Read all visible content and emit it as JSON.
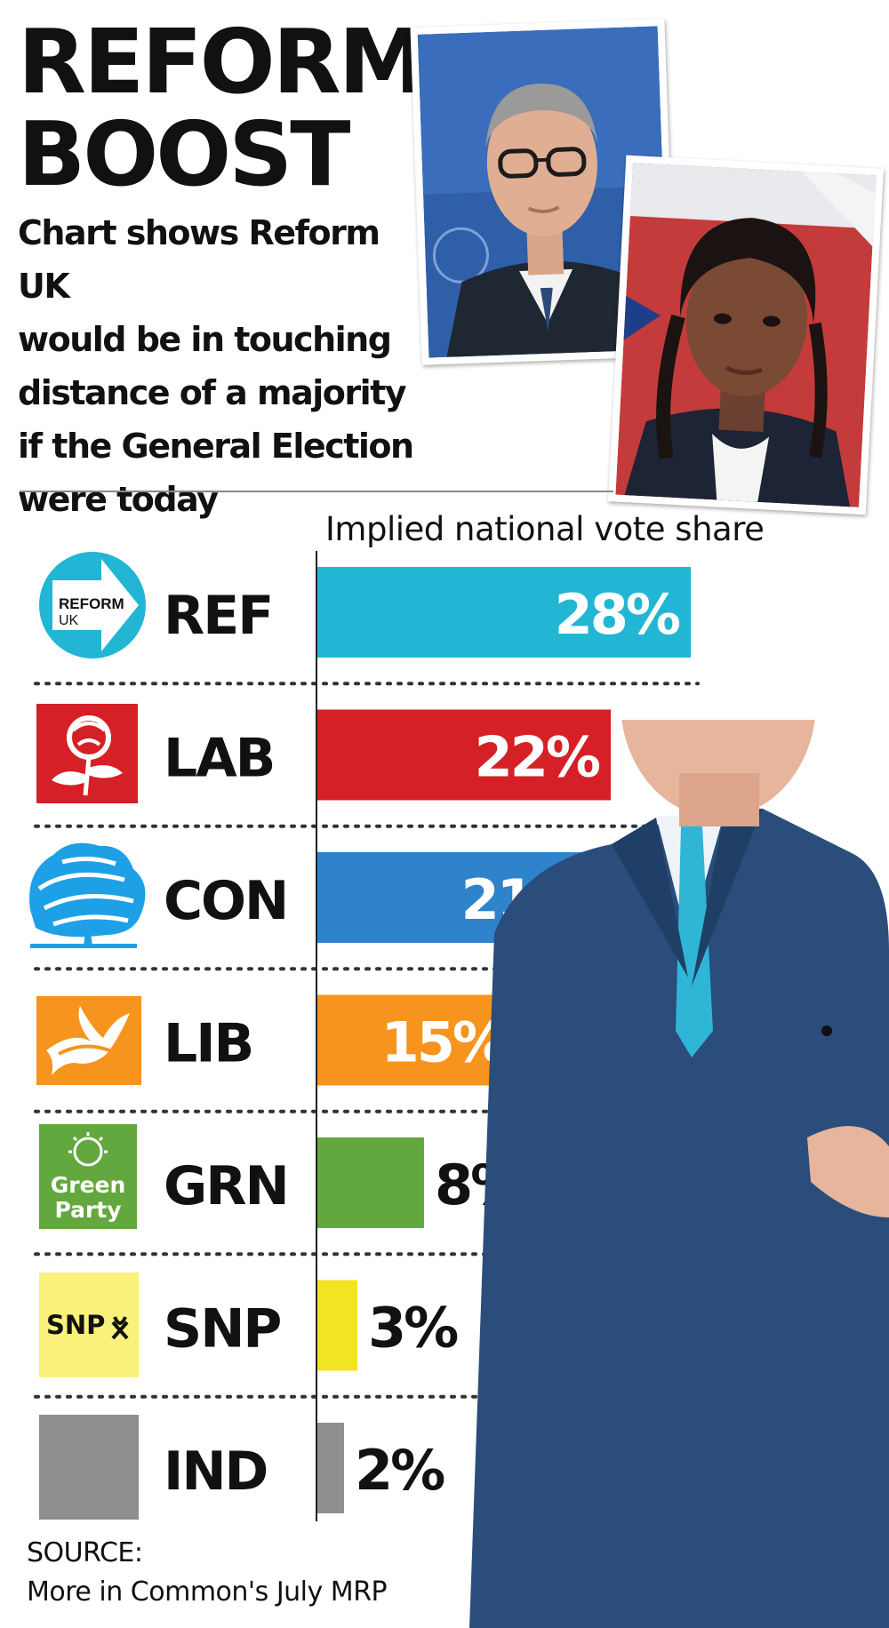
{
  "headline": {
    "line1": "REFORM",
    "line2": "BOOST"
  },
  "subhead": [
    "Chart shows Reform UK",
    "would be in touching",
    "distance of a majority",
    "if the General Election",
    "were today"
  ],
  "logos": {
    "reform": {
      "line1": "REFORM",
      "line2": "UK"
    },
    "green": {
      "line1": "Green",
      "line2": "Party"
    },
    "snp": "SNP"
  },
  "chart_data": {
    "type": "bar",
    "orientation": "horizontal",
    "title": "Implied national vote share",
    "categories": [
      "REF",
      "LAB",
      "CON",
      "LIB",
      "GRN",
      "SNP",
      "IND"
    ],
    "values": [
      28,
      22,
      21,
      15,
      8,
      3,
      2
    ],
    "value_labels": [
      "28%",
      "22%",
      "21%",
      "15%",
      "8%",
      "3%",
      "2%"
    ],
    "colors": [
      "#22b6d4",
      "#d62027",
      "#2f83cb",
      "#f7941d",
      "#63a83e",
      "#f2e422",
      "#8f8f8f"
    ],
    "xlim": [
      0,
      28
    ],
    "grid": false,
    "legend": "none"
  },
  "source": {
    "label": "SOURCE:",
    "text": "More in Common's July MRP"
  }
}
